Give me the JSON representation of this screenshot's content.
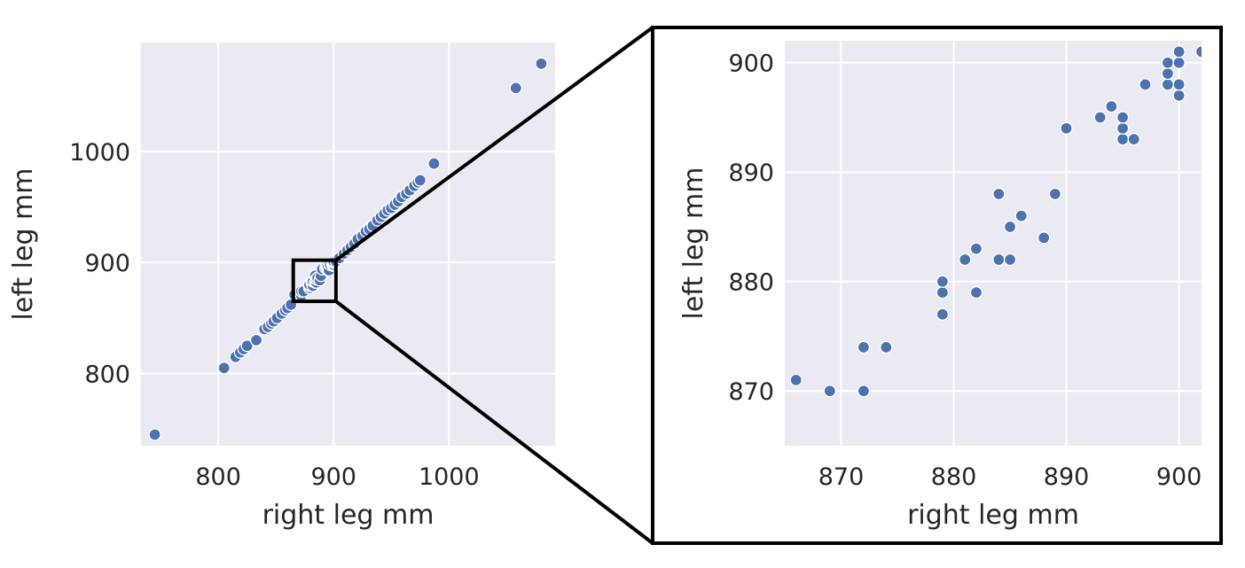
{
  "chart_data": [
    {
      "type": "scatter",
      "panel": "overview",
      "xlabel": "right leg mm",
      "ylabel": "left leg mm",
      "xlim": [
        733,
        1092
      ],
      "ylim": [
        735,
        1098
      ],
      "xticks": [
        800,
        900,
        1000
      ],
      "yticks": [
        800,
        900,
        1000
      ],
      "grid": true,
      "marker_color": "#4c72b0",
      "background": "#eaeaf2",
      "points": [
        [
          745,
          745
        ],
        [
          805,
          805
        ],
        [
          815,
          815
        ],
        [
          819,
          819
        ],
        [
          822,
          822
        ],
        [
          825,
          825
        ],
        [
          833,
          830
        ],
        [
          840,
          840
        ],
        [
          843,
          842
        ],
        [
          846,
          845
        ],
        [
          848,
          847
        ],
        [
          851,
          850
        ],
        [
          855,
          854
        ],
        [
          858,
          857
        ],
        [
          860,
          859
        ],
        [
          863,
          862
        ],
        [
          866,
          871
        ],
        [
          869,
          870
        ],
        [
          872,
          870
        ],
        [
          872,
          874
        ],
        [
          874,
          874
        ],
        [
          879,
          877
        ],
        [
          879,
          879
        ],
        [
          879,
          880
        ],
        [
          881,
          882
        ],
        [
          882,
          879
        ],
        [
          882,
          883
        ],
        [
          884,
          882
        ],
        [
          884,
          888
        ],
        [
          885,
          882
        ],
        [
          885,
          885
        ],
        [
          886,
          886
        ],
        [
          888,
          884
        ],
        [
          889,
          888
        ],
        [
          890,
          894
        ],
        [
          893,
          895
        ],
        [
          894,
          896
        ],
        [
          895,
          893
        ],
        [
          895,
          894
        ],
        [
          895,
          895
        ],
        [
          896,
          893
        ],
        [
          897,
          898
        ],
        [
          899,
          898
        ],
        [
          899,
          899
        ],
        [
          899,
          900
        ],
        [
          900,
          897
        ],
        [
          900,
          898
        ],
        [
          900,
          900
        ],
        [
          900,
          901
        ],
        [
          902,
          901
        ],
        [
          905,
          904
        ],
        [
          909,
          908
        ],
        [
          912,
          911
        ],
        [
          915,
          914
        ],
        [
          918,
          917
        ],
        [
          921,
          921
        ],
        [
          925,
          924
        ],
        [
          928,
          928
        ],
        [
          931,
          930
        ],
        [
          934,
          933
        ],
        [
          938,
          938
        ],
        [
          941,
          941
        ],
        [
          944,
          944
        ],
        [
          947,
          947
        ],
        [
          950,
          949
        ],
        [
          953,
          952
        ],
        [
          956,
          955
        ],
        [
          959,
          959
        ],
        [
          963,
          962
        ],
        [
          966,
          965
        ],
        [
          970,
          969
        ],
        [
          973,
          972
        ],
        [
          975,
          974
        ],
        [
          987,
          989
        ],
        [
          1058,
          1057
        ],
        [
          1080,
          1079
        ]
      ]
    },
    {
      "type": "scatter",
      "panel": "zoomed inset",
      "xlabel": "right leg mm",
      "ylabel": "left leg mm",
      "xlim": [
        865,
        902
      ],
      "ylim": [
        865,
        902
      ],
      "xticks": [
        870,
        880,
        890,
        900
      ],
      "yticks": [
        870,
        880,
        890,
        900
      ],
      "grid": true,
      "marker_color": "#4c72b0",
      "background": "#eaeaf2",
      "points": [
        [
          866,
          871
        ],
        [
          869,
          870
        ],
        [
          872,
          870
        ],
        [
          872,
          874
        ],
        [
          874,
          874
        ],
        [
          879,
          877
        ],
        [
          879,
          879
        ],
        [
          879,
          880
        ],
        [
          881,
          882
        ],
        [
          882,
          879
        ],
        [
          882,
          883
        ],
        [
          884,
          882
        ],
        [
          884,
          888
        ],
        [
          885,
          882
        ],
        [
          885,
          885
        ],
        [
          886,
          886
        ],
        [
          888,
          884
        ],
        [
          889,
          888
        ],
        [
          890,
          894
        ],
        [
          893,
          895
        ],
        [
          894,
          896
        ],
        [
          895,
          893
        ],
        [
          895,
          894
        ],
        [
          895,
          895
        ],
        [
          896,
          893
        ],
        [
          897,
          898
        ],
        [
          899,
          898
        ],
        [
          899,
          899
        ],
        [
          899,
          900
        ],
        [
          900,
          897
        ],
        [
          900,
          898
        ],
        [
          900,
          900
        ],
        [
          900,
          901
        ],
        [
          902,
          901
        ]
      ]
    }
  ]
}
